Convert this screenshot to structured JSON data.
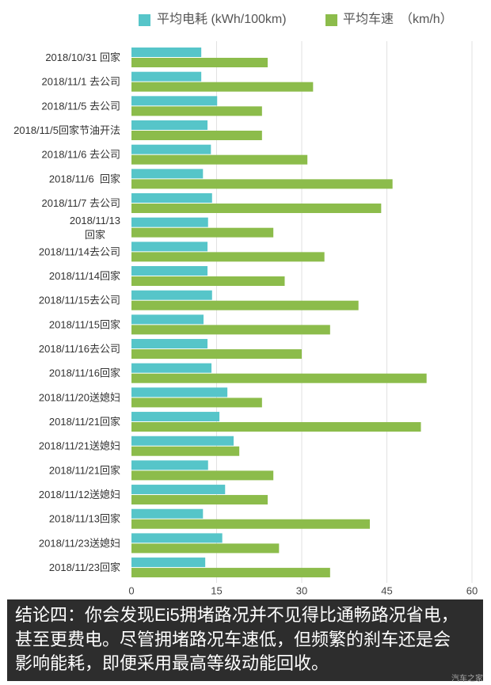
{
  "chart_data": {
    "type": "bar",
    "title": "",
    "xlabel": "",
    "ylabel": "",
    "categories": [
      "2018/10/31 回家",
      "2018/11/1 去公司",
      "2018/11/5 去公司",
      "2018/11/5回家节油开法",
      "2018/11/6 去公司",
      "2018/11/6  回家",
      "2018/11/7 去公司",
      "2018/11/13\n回家",
      "2018/11/14去公司",
      "2018/11/14回家",
      "2018/11/15去公司",
      "2018/11/15回家",
      "2018/11/16去公司",
      "2018/11/16回家",
      "2018/11/20送媳妇",
      "2018/11/21回家",
      "2018/11/21送媳妇",
      "2018/11/21回家",
      "2018/11/12送媳妇",
      "2018/11/13回家",
      "2018/11/23送媳妇",
      "2018/11/23回家"
    ],
    "series": [
      {
        "name": "平均电耗 (kWh/100km)",
        "color": "#56c5c9",
        "values": [
          12.3,
          12.3,
          15.1,
          13.4,
          14.0,
          12.6,
          14.2,
          13.5,
          13.4,
          13.4,
          14.2,
          12.7,
          13.4,
          14.1,
          16.9,
          15.5,
          18.0,
          13.5,
          16.5,
          12.6,
          16.0,
          13.0
        ]
      },
      {
        "name": "平均车速　（km/h）",
        "color": "#8cbc4b",
        "values": [
          24,
          32,
          23,
          23,
          31,
          46,
          44,
          25,
          34,
          27,
          40,
          35,
          30,
          52,
          23,
          51,
          19,
          25,
          24,
          42,
          26,
          35
        ]
      }
    ],
    "xticks": [
      0,
      15,
      30,
      45,
      60
    ],
    "xlim": [
      0,
      60
    ],
    "grid": true,
    "legend": "top"
  },
  "conclusion": {
    "lines": [
      "结论四：你会发现Ei5拥堵路况并不见得比通畅路况省电，",
      "甚至更费电。尽管拥堵路况车速低，但频繁的刹车还是会",
      "影响能耗，即便采用最高等级动能回收。"
    ]
  },
  "watermark": "汽车之家"
}
